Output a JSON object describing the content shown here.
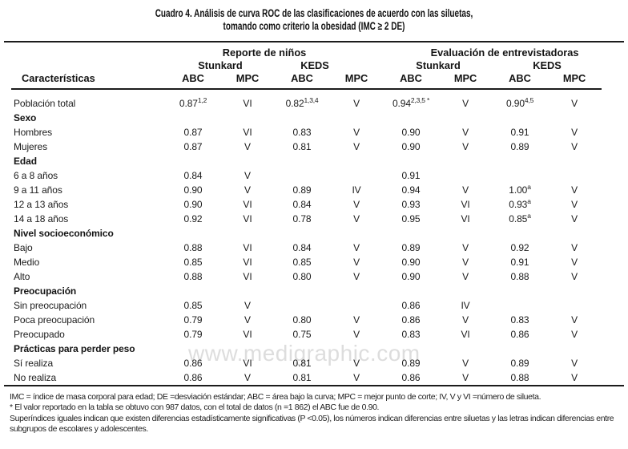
{
  "title": {
    "line1": "Cuadro 4. Análisis de curva ROC de las clasificaciones de acuerdo con las siluetas,",
    "line2": "tomando como criterio la obesidad (IMC ≥ 2 DE)"
  },
  "watermark": "www.medigraphic.com",
  "table": {
    "group_headers": [
      {
        "label": "Reporte de niños",
        "span": 4
      },
      {
        "label": "Evaluación de entrevistadoras",
        "span": 4
      }
    ],
    "scale_headers": [
      "Stunkard",
      "KEDS",
      "Stunkard",
      "KEDS"
    ],
    "col_headers": {
      "label": "Características",
      "metrics": [
        "ABC",
        "MPC",
        "ABC",
        "MPC",
        "ABC",
        "MPC",
        "ABC",
        "MPC"
      ]
    },
    "rows": [
      {
        "type": "data",
        "label": "Población total",
        "cells": [
          {
            "v": "0.87",
            "s": "1,2"
          },
          {
            "v": "VI"
          },
          {
            "v": "0.82",
            "s": "1,3,4"
          },
          {
            "v": "V"
          },
          {
            "v": "0.94",
            "s": "2,3,5 *"
          },
          {
            "v": "V"
          },
          {
            "v": "0.90",
            "s": "4,5"
          },
          {
            "v": "V"
          }
        ]
      },
      {
        "type": "section",
        "label": "Sexo"
      },
      {
        "type": "data",
        "label": "Hombres",
        "cells": [
          {
            "v": "0.87"
          },
          {
            "v": "VI"
          },
          {
            "v": "0.83"
          },
          {
            "v": "V"
          },
          {
            "v": "0.90"
          },
          {
            "v": "V"
          },
          {
            "v": "0.91"
          },
          {
            "v": "V"
          }
        ]
      },
      {
        "type": "data",
        "label": "Mujeres",
        "cells": [
          {
            "v": "0.87"
          },
          {
            "v": "V"
          },
          {
            "v": "0.81"
          },
          {
            "v": "V"
          },
          {
            "v": "0.90"
          },
          {
            "v": "V"
          },
          {
            "v": "0.89"
          },
          {
            "v": "V"
          }
        ]
      },
      {
        "type": "section",
        "label": "Edad"
      },
      {
        "type": "data",
        "label": "6 a 8 años",
        "cells": [
          {
            "v": "0.84"
          },
          {
            "v": "V"
          },
          {},
          {},
          {
            "v": "0.91"
          },
          {},
          {},
          {}
        ]
      },
      {
        "type": "data",
        "label": "9 a 11 años",
        "cells": [
          {
            "v": "0.90"
          },
          {
            "v": "V"
          },
          {
            "v": "0.89"
          },
          {
            "v": "IV"
          },
          {
            "v": "0.94"
          },
          {
            "v": "V"
          },
          {
            "v": "1.00",
            "s": "a"
          },
          {
            "v": "V"
          }
        ]
      },
      {
        "type": "data",
        "label": "12 a 13 años",
        "cells": [
          {
            "v": "0.90"
          },
          {
            "v": "VI"
          },
          {
            "v": "0.84"
          },
          {
            "v": "V"
          },
          {
            "v": "0.93"
          },
          {
            "v": "VI"
          },
          {
            "v": "0.93",
            "s": "a"
          },
          {
            "v": "V"
          }
        ]
      },
      {
        "type": "data",
        "label": "14 a 18 años",
        "cells": [
          {
            "v": "0.92"
          },
          {
            "v": "VI"
          },
          {
            "v": "0.78"
          },
          {
            "v": "V"
          },
          {
            "v": "0.95"
          },
          {
            "v": "VI"
          },
          {
            "v": "0.85",
            "s": "a"
          },
          {
            "v": "V"
          }
        ]
      },
      {
        "type": "section",
        "label": "Nivel socioeconómico"
      },
      {
        "type": "data",
        "label": "Bajo",
        "cells": [
          {
            "v": "0.88"
          },
          {
            "v": "VI"
          },
          {
            "v": "0.84"
          },
          {
            "v": "V"
          },
          {
            "v": "0.89"
          },
          {
            "v": "V"
          },
          {
            "v": "0.92"
          },
          {
            "v": "V"
          }
        ]
      },
      {
        "type": "data",
        "label": "Medio",
        "cells": [
          {
            "v": "0.85"
          },
          {
            "v": "VI"
          },
          {
            "v": "0.85"
          },
          {
            "v": "V"
          },
          {
            "v": "0.90"
          },
          {
            "v": "V"
          },
          {
            "v": "0.91"
          },
          {
            "v": "V"
          }
        ]
      },
      {
        "type": "data",
        "label": "Alto",
        "cells": [
          {
            "v": "0.88"
          },
          {
            "v": "VI"
          },
          {
            "v": "0.80"
          },
          {
            "v": "V"
          },
          {
            "v": "0.90"
          },
          {
            "v": "V"
          },
          {
            "v": "0.88"
          },
          {
            "v": "V"
          }
        ]
      },
      {
        "type": "section",
        "label": "Preocupación"
      },
      {
        "type": "data",
        "label": "Sin preocupación",
        "cells": [
          {
            "v": "0.85"
          },
          {
            "v": "V"
          },
          {},
          {},
          {
            "v": "0.86"
          },
          {
            "v": "IV"
          },
          {},
          {}
        ]
      },
      {
        "type": "data",
        "label": "Poca preocupación",
        "cells": [
          {
            "v": "0.79"
          },
          {
            "v": "V"
          },
          {
            "v": "0.80"
          },
          {
            "v": "V"
          },
          {
            "v": "0.86"
          },
          {
            "v": "V"
          },
          {
            "v": "0.83"
          },
          {
            "v": "V"
          }
        ]
      },
      {
        "type": "data",
        "label": "Preocupado",
        "cells": [
          {
            "v": "0.79"
          },
          {
            "v": "VI"
          },
          {
            "v": "0.75"
          },
          {
            "v": "V"
          },
          {
            "v": "0.83"
          },
          {
            "v": "VI"
          },
          {
            "v": "0.86"
          },
          {
            "v": "V"
          }
        ]
      },
      {
        "type": "section",
        "label": "Prácticas para perder peso"
      },
      {
        "type": "data",
        "label": "Sí realiza",
        "cells": [
          {
            "v": "0.86"
          },
          {
            "v": "VI"
          },
          {
            "v": "0.81"
          },
          {
            "v": "V"
          },
          {
            "v": "0.89"
          },
          {
            "v": "V"
          },
          {
            "v": "0.89"
          },
          {
            "v": "V"
          }
        ]
      },
      {
        "type": "data",
        "label": "No realiza",
        "cells": [
          {
            "v": "0.86"
          },
          {
            "v": "V"
          },
          {
            "v": "0.81"
          },
          {
            "v": "V"
          },
          {
            "v": "0.86"
          },
          {
            "v": "V"
          },
          {
            "v": "0.88"
          },
          {
            "v": "V"
          }
        ]
      }
    ]
  },
  "footnotes": [
    "IMC = índice de masa corporal para edad; DE =desviación estándar; ABC = área bajo la curva; MPC = mejor punto de corte; IV, V y VI =número de silueta.",
    "* El valor reportado en la tabla se obtuvo con 987 datos, con el total de datos (n =1 862) el ABC fue de 0.90.",
    "Superíndices iguales indican que existen diferencias estadísticamente significativas (P <0.05), los números indican diferencias entre siluetas y las letras indican diferencias entre subgrupos de escolares y adolescentes."
  ]
}
